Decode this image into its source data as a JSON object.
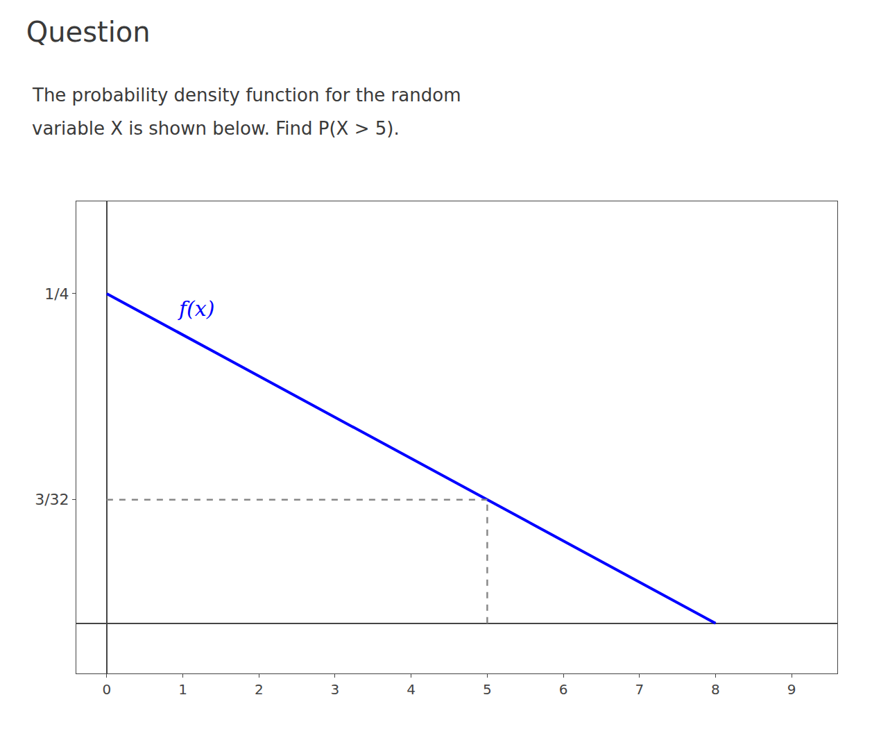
{
  "chart_data": {
    "type": "line",
    "title": "Question",
    "subtitle": [
      "The probability density function for the random",
      "variable X is shown below. Find P(X > 5)."
    ],
    "series": [
      {
        "x": [
          0,
          8
        ],
        "values": [
          0.25,
          0
        ],
        "color": "#0000ff",
        "line_style": "solid"
      },
      {
        "x": [
          0,
          5
        ],
        "values": [
          0.09375,
          0.09375
        ],
        "color": "#888888",
        "line_style": "dashed"
      },
      {
        "x": [
          5,
          5
        ],
        "values": [
          0,
          0.09375
        ],
        "color": "#888888",
        "line_style": "dashed"
      }
    ],
    "annotations": [
      {
        "text": "f(x)"
      }
    ],
    "xlim": [
      -0.4,
      9.6
    ],
    "xticks": [
      0,
      1,
      2,
      3,
      4,
      5,
      6,
      7,
      8,
      9
    ],
    "ylim": [
      -0.038,
      0.32
    ],
    "yticks": [
      {
        "value": 0.25,
        "label": "1/4"
      },
      {
        "value": 0.09375,
        "label": "3/32"
      }
    ],
    "grid": false
  }
}
